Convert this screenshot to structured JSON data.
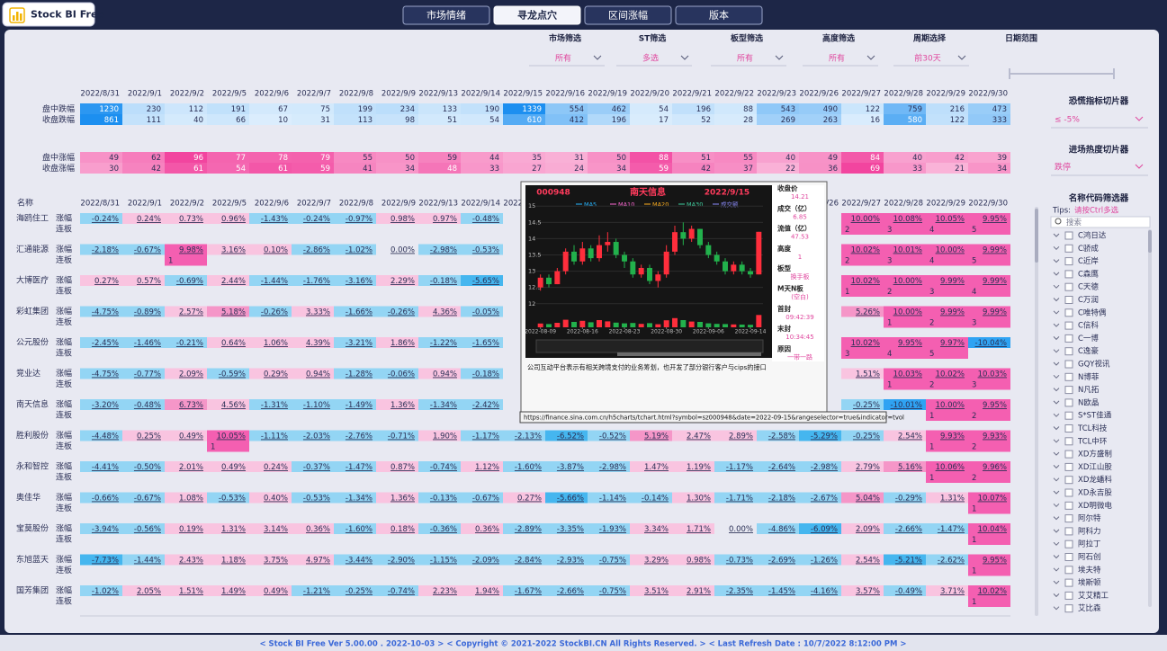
{
  "header": {
    "logo": "Stock BI Free",
    "tabs": [
      "市场情绪",
      "寻龙点穴",
      "区间涨幅",
      "版本"
    ],
    "active_tab": 1
  },
  "filters": [
    {
      "label": "市场筛选",
      "value": "所有"
    },
    {
      "label": "ST筛选",
      "value": "多选"
    },
    {
      "label": "板型筛选",
      "value": "所有"
    },
    {
      "label": "高度筛选",
      "value": "所有"
    },
    {
      "label": "周期选择",
      "value": "前30天"
    }
  ],
  "date_range": {
    "label": "日期范围"
  },
  "dates": [
    "2022/8/31",
    "2022/9/1",
    "2022/9/2",
    "2022/9/5",
    "2022/9/6",
    "2022/9/7",
    "2022/9/8",
    "2022/9/9",
    "2022/9/13",
    "2022/9/14",
    "2022/9/15",
    "2022/9/16",
    "2022/9/19",
    "2022/9/20",
    "2022/9/21",
    "2022/9/22",
    "2022/9/23",
    "2022/9/26",
    "2022/9/27",
    "2022/9/28",
    "2022/9/29",
    "2022/9/30"
  ],
  "summary": {
    "rows": [
      {
        "label": "盘中跌幅",
        "color": "#1c8ff0",
        "values": [
          1230,
          230,
          112,
          191,
          67,
          75,
          199,
          234,
          133,
          190,
          1339,
          554,
          462,
          54,
          196,
          88,
          543,
          490,
          122,
          759,
          216,
          473
        ]
      },
      {
        "label": "收盘跌幅",
        "color": "#1c8ff0",
        "values": [
          861,
          111,
          40,
          66,
          10,
          31,
          113,
          98,
          51,
          54,
          610,
          412,
          196,
          17,
          52,
          28,
          269,
          263,
          16,
          580,
          122,
          333
        ]
      },
      {
        "label": "盘中涨幅",
        "color": "#f2459f",
        "values": [
          49,
          62,
          96,
          77,
          78,
          79,
          55,
          50,
          59,
          44,
          35,
          31,
          50,
          88,
          51,
          55,
          40,
          49,
          84,
          40,
          42,
          39
        ]
      },
      {
        "label": "收盘涨幅",
        "color": "#f2459f",
        "values": [
          30,
          42,
          61,
          54,
          61,
          59,
          41,
          34,
          48,
          33,
          27,
          24,
          34,
          59,
          42,
          37,
          22,
          36,
          69,
          33,
          21,
          34
        ]
      }
    ]
  },
  "table": {
    "header": "名称",
    "row_labels": [
      "涨幅",
      "连板"
    ],
    "stocks": [
      {
        "name": "海鸥住工",
        "change": [
          "-0.24%",
          "0.24%",
          "0.73%",
          "0.96%",
          "-1.43%",
          "-0.24%",
          "-0.97%",
          "0.98%",
          "0.97%",
          "-0.48%",
          null,
          null,
          null,
          null,
          null,
          null,
          null,
          null,
          "10.00%",
          "10.08%",
          "10.05%",
          "9.95%"
        ],
        "streak": [
          null,
          null,
          null,
          null,
          null,
          null,
          null,
          null,
          null,
          null,
          null,
          null,
          null,
          null,
          null,
          null,
          null,
          null,
          2,
          3,
          4,
          5
        ]
      },
      {
        "name": "汇通能源",
        "change": [
          "-2.18%",
          "-0.67%",
          "9.98%",
          "3.16%",
          "0.10%",
          "-2.86%",
          "-1.02%",
          "0.00%",
          "-2.98%",
          "-0.53%",
          null,
          null,
          null,
          null,
          null,
          null,
          null,
          null,
          "10.02%",
          "10.01%",
          "10.00%",
          "9.99%"
        ],
        "streak": [
          null,
          null,
          1,
          null,
          null,
          null,
          null,
          null,
          null,
          null,
          null,
          null,
          null,
          null,
          null,
          null,
          null,
          null,
          2,
          3,
          4,
          5
        ]
      },
      {
        "name": "大博医疗",
        "change": [
          "0.27%",
          "0.57%",
          "-0.69%",
          "2.44%",
          "-1.44%",
          "-1.76%",
          "-3.16%",
          "2.29%",
          "-0.18%",
          "-5.65%",
          null,
          null,
          null,
          null,
          null,
          null,
          null,
          null,
          "10.02%",
          "10.00%",
          "9.99%",
          "9.99%"
        ],
        "streak": [
          null,
          null,
          null,
          null,
          null,
          null,
          null,
          null,
          null,
          null,
          null,
          null,
          null,
          null,
          null,
          null,
          null,
          null,
          1,
          2,
          3,
          4
        ]
      },
      {
        "name": "彩虹集团",
        "change": [
          "-4.75%",
          "-0.89%",
          "2.57%",
          "5.18%",
          "-0.26%",
          "3.33%",
          "-1.66%",
          "-0.26%",
          "4.36%",
          "-0.05%",
          null,
          null,
          null,
          null,
          null,
          null,
          null,
          null,
          "5.26%",
          "10.00%",
          "9.99%",
          "9.99%"
        ],
        "streak": [
          null,
          null,
          null,
          null,
          null,
          null,
          null,
          null,
          null,
          null,
          null,
          null,
          null,
          null,
          null,
          null,
          null,
          null,
          null,
          1,
          2,
          3
        ]
      },
      {
        "name": "公元股份",
        "change": [
          "-2.45%",
          "-1.46%",
          "-0.21%",
          "0.64%",
          "1.06%",
          "4.39%",
          "-3.21%",
          "1.86%",
          "-1.22%",
          "-1.65%",
          null,
          null,
          null,
          null,
          null,
          null,
          null,
          null,
          "10.02%",
          "9.95%",
          "9.97%",
          "-10.04%"
        ],
        "streak": [
          null,
          null,
          null,
          null,
          null,
          null,
          null,
          null,
          null,
          null,
          null,
          null,
          null,
          null,
          null,
          null,
          null,
          null,
          3,
          4,
          5,
          null
        ]
      },
      {
        "name": "竞业达",
        "change": [
          "-4.75%",
          "-0.77%",
          "2.09%",
          "-0.59%",
          "0.29%",
          "0.94%",
          "-1.28%",
          "-0.06%",
          "0.94%",
          "-0.18%",
          null,
          null,
          null,
          null,
          null,
          null,
          null,
          null,
          "1.51%",
          "10.03%",
          "10.02%",
          "10.03%"
        ],
        "streak": [
          null,
          null,
          null,
          null,
          null,
          null,
          null,
          null,
          null,
          null,
          null,
          null,
          null,
          null,
          null,
          null,
          null,
          null,
          null,
          1,
          2,
          3
        ]
      },
      {
        "name": "南天信息",
        "change": [
          "-3.20%",
          "-0.48%",
          "6.73%",
          "4.56%",
          "-1.31%",
          "-1.10%",
          "-1.49%",
          "1.36%",
          "-1.34%",
          "-2.42%",
          null,
          null,
          null,
          null,
          null,
          null,
          null,
          null,
          "-0.25%",
          "-10.01%",
          "10.00%",
          "9.95%"
        ],
        "streak": [
          null,
          null,
          null,
          null,
          null,
          null,
          null,
          null,
          null,
          null,
          null,
          null,
          null,
          null,
          null,
          null,
          null,
          null,
          null,
          null,
          1,
          2
        ]
      },
      {
        "name": "胜利股份",
        "change": [
          "-4.48%",
          "0.25%",
          "0.49%",
          "10.05%",
          "-1.11%",
          "-2.03%",
          "-2.76%",
          "-0.71%",
          "1.90%",
          "-1.17%",
          "-2.13%",
          "-6.52%",
          "-0.52%",
          "5.19%",
          "2.47%",
          "2.89%",
          "-2.58%",
          "-5.29%",
          "-0.25%",
          "2.54%",
          "9.93%",
          "9.93%"
        ],
        "streak": [
          null,
          null,
          null,
          1,
          null,
          null,
          null,
          null,
          null,
          null,
          null,
          null,
          null,
          null,
          null,
          null,
          null,
          null,
          null,
          null,
          1,
          2
        ]
      },
      {
        "name": "永和智控",
        "change": [
          "-4.41%",
          "-0.50%",
          "2.01%",
          "0.49%",
          "0.24%",
          "-0.37%",
          "-1.47%",
          "0.87%",
          "-0.74%",
          "1.12%",
          "-1.60%",
          "-3.87%",
          "-2.98%",
          "1.47%",
          "1.19%",
          "-1.17%",
          "-2.64%",
          "-2.98%",
          "2.79%",
          "5.16%",
          "10.06%",
          "9.96%"
        ],
        "streak": [
          null,
          null,
          null,
          null,
          null,
          null,
          null,
          null,
          null,
          null,
          null,
          null,
          null,
          null,
          null,
          null,
          null,
          null,
          null,
          null,
          1,
          2
        ]
      },
      {
        "name": "奥佳华",
        "change": [
          "-0.66%",
          "-0.67%",
          "1.08%",
          "-0.53%",
          "0.40%",
          "-0.53%",
          "-1.34%",
          "1.36%",
          "-0.13%",
          "-0.67%",
          "0.27%",
          "-5.66%",
          "-1.14%",
          "-0.14%",
          "1.30%",
          "-1.71%",
          "-2.18%",
          "-2.67%",
          "5.04%",
          "-0.29%",
          "1.31%",
          "10.07%"
        ],
        "streak": [
          null,
          null,
          null,
          null,
          null,
          null,
          null,
          null,
          null,
          null,
          null,
          null,
          null,
          null,
          null,
          null,
          null,
          null,
          null,
          null,
          null,
          1
        ]
      },
      {
        "name": "宝莫股份",
        "change": [
          "-3.94%",
          "-0.56%",
          "0.19%",
          "1.31%",
          "3.14%",
          "0.36%",
          "-1.60%",
          "0.18%",
          "-0.36%",
          "0.36%",
          "-2.89%",
          "-3.35%",
          "-1.93%",
          "3.34%",
          "1.71%",
          "0.00%",
          "-4.86%",
          "-6.09%",
          "2.09%",
          "-2.66%",
          "-1.47%",
          "10.04%"
        ],
        "streak": [
          null,
          null,
          null,
          null,
          null,
          null,
          null,
          null,
          null,
          null,
          null,
          null,
          null,
          null,
          null,
          null,
          null,
          null,
          null,
          null,
          null,
          1
        ]
      },
      {
        "name": "东旭蓝天",
        "change": [
          "-7.73%",
          "-1.44%",
          "2.43%",
          "1.18%",
          "3.75%",
          "4.97%",
          "-3.44%",
          "-2.90%",
          "-1.15%",
          "-2.09%",
          "-2.84%",
          "-2.93%",
          "-0.75%",
          "3.29%",
          "0.98%",
          "-0.73%",
          "-2.69%",
          "-1.26%",
          "2.54%",
          "-5.21%",
          "-2.62%",
          "9.95%"
        ],
        "streak": [
          null,
          null,
          null,
          null,
          null,
          null,
          null,
          null,
          null,
          null,
          null,
          null,
          null,
          null,
          null,
          null,
          null,
          null,
          null,
          null,
          null,
          1
        ]
      },
      {
        "name": "国芳集团",
        "change": [
          "-1.02%",
          "2.05%",
          "1.51%",
          "1.49%",
          "0.49%",
          "-1.21%",
          "-0.25%",
          "-0.74%",
          "2.23%",
          "1.94%",
          "-1.67%",
          "-2.66%",
          "-0.75%",
          "3.51%",
          "2.91%",
          "-2.35%",
          "-1.45%",
          "-4.16%",
          "3.57%",
          "-0.49%",
          "3.71%",
          "10.02%"
        ],
        "streak": [
          null,
          null,
          null,
          null,
          null,
          null,
          null,
          null,
          null,
          null,
          null,
          null,
          null,
          null,
          null,
          null,
          null,
          null,
          null,
          null,
          null,
          1
        ]
      }
    ]
  },
  "slicers": {
    "panic": {
      "title": "恐慌指标切片器",
      "value": "≤ -5%"
    },
    "heat": {
      "title": "进场热度切片器",
      "value": "跌停"
    },
    "names": {
      "title": "名称代码筛选器",
      "tips_label": "Tips:",
      "tips": "请按Ctrl多选",
      "search": "搜索",
      "items": [
        "C鸿日达",
        "C骄成",
        "C近岸",
        "C森鹰",
        "C天德",
        "C万润",
        "C唯特偶",
        "C信科",
        "C一博",
        "C逸豪",
        "GQY视讯",
        "N博菲",
        "N凡拓",
        "N欧晶",
        "S*ST佳通",
        "TCL科技",
        "TCL中环",
        "XD方盛制",
        "XD江山股",
        "XD龙蟠科",
        "XD永吉股",
        "XD明微电",
        "阿尔特",
        "阿科力",
        "阿拉丁",
        "阿石创",
        "埃夫特",
        "埃斯顿",
        "艾艾精工",
        "艾比森"
      ]
    }
  },
  "popup": {
    "code": "000948",
    "name": "南天信息",
    "date": "2022/9/15",
    "info": [
      {
        "label": "收盘价",
        "value": "14.21"
      },
      {
        "label": "成交（亿）",
        "value": "6.85"
      },
      {
        "label": "流值（亿）",
        "value": "47.53"
      },
      {
        "label": "高度",
        "value": "1"
      },
      {
        "label": "板型",
        "value": "换手板"
      },
      {
        "label": "M天N板",
        "value": "(空白)"
      },
      {
        "label": "首封",
        "value": "09:42:39"
      },
      {
        "label": "末封",
        "value": "10:34:45"
      },
      {
        "label": "原因",
        "value": "一带一路"
      }
    ],
    "description": "公司互动平台表示有相关跨境支付的业务筹划，也开发了部分银行客户与cips的接口",
    "url": "https://finance.sina.com.cn/h5charts/tchart.html?symbol=sz000948&date=2022-09-15&rangeselector=true&indicator=tvol"
  },
  "chart_data": {
    "type": "candlestick",
    "x": [
      "2022-08-09",
      "2022-08-10",
      "2022-08-11",
      "2022-08-12",
      "2022-08-15",
      "2022-08-16",
      "2022-08-17",
      "2022-08-18",
      "2022-08-19",
      "2022-08-22",
      "2022-08-23",
      "2022-08-24",
      "2022-08-25",
      "2022-08-26",
      "2022-08-29",
      "2022-08-30",
      "2022-08-31",
      "2022-09-01",
      "2022-09-02",
      "2022-09-05",
      "2022-09-06",
      "2022-09-07",
      "2022-09-08",
      "2022-09-09",
      "2022-09-13",
      "2022-09-14",
      "2022-09-15"
    ],
    "open": [
      12.5,
      12.8,
      12.6,
      13.0,
      13.6,
      13.3,
      13.7,
      13.4,
      13.8,
      13.9,
      13.5,
      13.3,
      12.9,
      13.1,
      12.7,
      12.9,
      13.6,
      14.2,
      14.0,
      14.3,
      13.8,
      13.5,
      13.3,
      13.0,
      13.2,
      13.0,
      12.9
    ],
    "close": [
      12.8,
      12.6,
      13.0,
      13.6,
      13.3,
      13.7,
      13.4,
      13.8,
      13.9,
      13.5,
      13.3,
      12.9,
      13.1,
      12.7,
      12.9,
      13.6,
      14.2,
      14.0,
      14.3,
      13.8,
      13.5,
      13.3,
      13.0,
      13.2,
      13.0,
      12.9,
      14.21
    ],
    "low": [
      12.4,
      12.5,
      12.6,
      12.9,
      13.2,
      13.2,
      13.3,
      13.3,
      13.6,
      13.4,
      13.1,
      12.8,
      12.8,
      12.6,
      12.5,
      12.8,
      13.5,
      13.8,
      13.9,
      13.7,
      13.4,
      13.2,
      12.9,
      12.9,
      12.9,
      12.8,
      12.9
    ],
    "high": [
      12.9,
      12.9,
      13.1,
      13.7,
      13.8,
      13.9,
      13.8,
      14.1,
      14.2,
      14.0,
      13.6,
      13.4,
      13.2,
      13.2,
      13.0,
      13.8,
      14.4,
      14.5,
      14.4,
      14.3,
      13.9,
      13.6,
      13.4,
      13.3,
      13.3,
      13.1,
      14.21
    ],
    "volume": [
      2.1,
      1.8,
      2.5,
      4.2,
      3.0,
      3.6,
      2.8,
      4.0,
      3.3,
      2.6,
      2.2,
      2.4,
      1.9,
      2.3,
      1.7,
      3.9,
      5.1,
      4.0,
      3.2,
      3.0,
      2.2,
      1.9,
      1.8,
      1.6,
      1.5,
      1.4,
      6.85
    ],
    "ylim": [
      11.8,
      15.2
    ],
    "yticks": [
      12,
      12.5,
      13,
      13.5,
      14,
      14.5,
      15
    ],
    "vlim": [
      0,
      8
    ],
    "xticks": [
      "2022-08-09",
      "2022-08-16",
      "2022-08-23",
      "2022-08-30",
      "2022-09-06",
      "2022-09-14"
    ],
    "up_color": "#ff2e3c",
    "down_color": "#22b14c",
    "legend": [
      {
        "name": "MA5",
        "color": "#27b6ff"
      },
      {
        "name": "MA10",
        "color": "#ff6ad5"
      },
      {
        "name": "MA20",
        "color": "#ffb020"
      },
      {
        "name": "MA30",
        "color": "#40d0a0"
      },
      {
        "name": "成交额",
        "color": "#8d8dff"
      }
    ]
  },
  "footer": "< Stock BI Free  Ver 5.00.00 .  2022-10-03 >  < Copyright © 2021-2022 StockBI.CN All Rights Reserved. >  < Last Refresh Date : 10/7/2022 8:12:00 PM >"
}
